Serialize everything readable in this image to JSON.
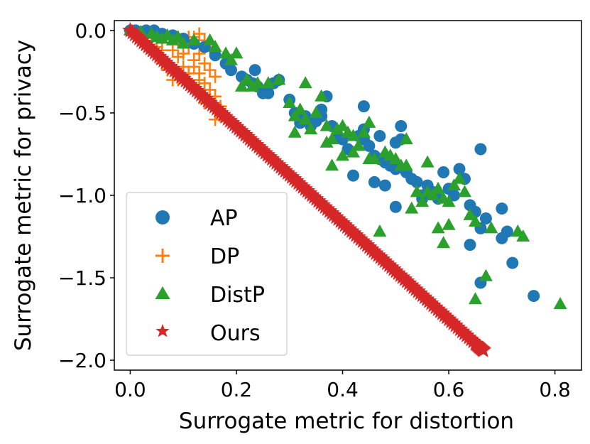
{
  "chart_data": {
    "type": "scatter",
    "title": "",
    "xlabel": "Surrogate metric for distortion",
    "ylabel": "Surrogate metric for privacy",
    "xlim": [
      -0.03,
      0.85
    ],
    "ylim": [
      -2.06,
      0.06
    ],
    "xticks": [
      0.0,
      0.2,
      0.4,
      0.6,
      0.8
    ],
    "xtick_labels": [
      "0.0",
      "0.2",
      "0.4",
      "0.6",
      "0.8"
    ],
    "yticks": [
      0.0,
      -0.5,
      -1.0,
      -1.5,
      -2.0
    ],
    "ytick_labels": [
      "0.0",
      "−0.5",
      "−1.0",
      "−1.5",
      "−2.0"
    ],
    "grid": false,
    "legend_position": "lower-left",
    "series": [
      {
        "name": "AP",
        "marker": "circle",
        "color": "#1f77b4",
        "points": [
          [
            0.0,
            0.0
          ],
          [
            0.01,
            0.0
          ],
          [
            0.02,
            -0.01
          ],
          [
            0.03,
            0.0
          ],
          [
            0.045,
            0.0
          ],
          [
            0.06,
            -0.02
          ],
          [
            0.08,
            -0.03
          ],
          [
            0.1,
            -0.05
          ],
          [
            0.12,
            -0.08
          ],
          [
            0.14,
            -0.1
          ],
          [
            0.16,
            -0.15
          ],
          [
            0.18,
            -0.2
          ],
          [
            0.19,
            -0.24
          ],
          [
            0.21,
            -0.28
          ],
          [
            0.22,
            -0.3
          ],
          [
            0.23,
            -0.32
          ],
          [
            0.235,
            -0.24
          ],
          [
            0.24,
            -0.34
          ],
          [
            0.25,
            -0.38
          ],
          [
            0.26,
            -0.38
          ],
          [
            0.27,
            -0.32
          ],
          [
            0.28,
            -0.3
          ],
          [
            0.3,
            -0.42
          ],
          [
            0.31,
            -0.5
          ],
          [
            0.32,
            -0.56
          ],
          [
            0.33,
            -0.52
          ],
          [
            0.34,
            -0.58
          ],
          [
            0.35,
            -0.55
          ],
          [
            0.36,
            -0.48
          ],
          [
            0.37,
            -0.4
          ],
          [
            0.38,
            -0.58
          ],
          [
            0.39,
            -0.64
          ],
          [
            0.4,
            -0.66
          ],
          [
            0.41,
            -0.72
          ],
          [
            0.42,
            -0.88
          ],
          [
            0.43,
            -0.64
          ],
          [
            0.44,
            -0.6
          ],
          [
            0.44,
            -0.46
          ],
          [
            0.45,
            -0.7
          ],
          [
            0.46,
            -0.76
          ],
          [
            0.47,
            -0.64
          ],
          [
            0.47,
            -0.78
          ],
          [
            0.48,
            -0.8
          ],
          [
            0.49,
            -0.82
          ],
          [
            0.5,
            -0.68
          ],
          [
            0.5,
            -0.84
          ],
          [
            0.51,
            -0.66
          ],
          [
            0.51,
            -0.58
          ],
          [
            0.52,
            -0.86
          ],
          [
            0.53,
            -0.9
          ],
          [
            0.54,
            -0.92
          ],
          [
            0.55,
            -1.0
          ],
          [
            0.56,
            -0.94
          ],
          [
            0.57,
            -0.98
          ],
          [
            0.58,
            -1.02
          ],
          [
            0.59,
            -0.86
          ],
          [
            0.6,
            -0.96
          ],
          [
            0.61,
            -1.0
          ],
          [
            0.62,
            -0.84
          ],
          [
            0.63,
            -0.9
          ],
          [
            0.64,
            -1.06
          ],
          [
            0.65,
            -1.1
          ],
          [
            0.66,
            -1.2
          ],
          [
            0.66,
            -0.72
          ],
          [
            0.67,
            -1.14
          ],
          [
            0.64,
            -1.3
          ],
          [
            0.66,
            -1.53
          ],
          [
            0.7,
            -1.08
          ],
          [
            0.7,
            -1.26
          ],
          [
            0.71,
            -1.22
          ],
          [
            0.72,
            -1.41
          ],
          [
            0.76,
            -1.61
          ],
          [
            0.5,
            -1.07
          ],
          [
            0.55,
            -1.02
          ],
          [
            0.46,
            -0.92
          ],
          [
            0.48,
            -0.94
          ],
          [
            0.44,
            -0.66
          ],
          [
            0.36,
            -0.52
          ]
        ]
      },
      {
        "name": "DP",
        "marker": "plus",
        "color": "#ff7f0e",
        "points": [
          [
            0.0,
            0.0
          ],
          [
            0.02,
            -0.01
          ],
          [
            0.04,
            -0.02
          ],
          [
            0.05,
            -0.1
          ],
          [
            0.06,
            -0.2
          ],
          [
            0.06,
            -0.05
          ],
          [
            0.07,
            -0.24
          ],
          [
            0.08,
            -0.3
          ],
          [
            0.08,
            -0.12
          ],
          [
            0.09,
            -0.16
          ],
          [
            0.09,
            -0.3
          ],
          [
            0.1,
            -0.08
          ],
          [
            0.1,
            -0.22
          ],
          [
            0.11,
            -0.1
          ],
          [
            0.11,
            -0.26
          ],
          [
            0.12,
            -0.04
          ],
          [
            0.12,
            -0.18
          ],
          [
            0.12,
            -0.34
          ],
          [
            0.13,
            -0.14
          ],
          [
            0.13,
            -0.02
          ],
          [
            0.13,
            -0.26
          ],
          [
            0.14,
            -0.06
          ],
          [
            0.14,
            -0.2
          ],
          [
            0.14,
            -0.32
          ],
          [
            0.15,
            -0.1
          ],
          [
            0.15,
            -0.24
          ],
          [
            0.15,
            -0.36
          ],
          [
            0.16,
            -0.28
          ],
          [
            0.16,
            -0.4
          ],
          [
            0.16,
            -0.54
          ],
          [
            0.17,
            -0.46
          ],
          [
            0.17,
            -0.52
          ],
          [
            0.15,
            -0.42
          ],
          [
            0.1,
            -0.14
          ],
          [
            0.09,
            -0.06
          ],
          [
            0.11,
            -0.04
          ],
          [
            0.13,
            -0.3
          ],
          [
            0.14,
            -0.44
          ],
          [
            0.12,
            -0.22
          ],
          [
            0.06,
            -0.12
          ]
        ]
      },
      {
        "name": "DistP",
        "marker": "triangle",
        "color": "#2ca02c",
        "points": [
          [
            0.0,
            0.0
          ],
          [
            0.02,
            -0.01
          ],
          [
            0.04,
            -0.02
          ],
          [
            0.05,
            -0.04
          ],
          [
            0.06,
            -0.05
          ],
          [
            0.07,
            -0.03
          ],
          [
            0.08,
            -0.06
          ],
          [
            0.09,
            -0.04
          ],
          [
            0.1,
            -0.08
          ],
          [
            0.12,
            -0.06
          ],
          [
            0.15,
            -0.06
          ],
          [
            0.16,
            -0.1
          ],
          [
            0.18,
            -0.14
          ],
          [
            0.19,
            -0.18
          ],
          [
            0.2,
            -0.14
          ],
          [
            0.21,
            -0.34
          ],
          [
            0.22,
            -0.3
          ],
          [
            0.23,
            -0.34
          ],
          [
            0.24,
            -0.32
          ],
          [
            0.26,
            -0.32
          ],
          [
            0.28,
            -0.3
          ],
          [
            0.3,
            -0.44
          ],
          [
            0.31,
            -0.52
          ],
          [
            0.31,
            -0.62
          ],
          [
            0.32,
            -0.48
          ],
          [
            0.33,
            -0.54
          ],
          [
            0.33,
            -0.32
          ],
          [
            0.34,
            -0.6
          ],
          [
            0.35,
            -0.5
          ],
          [
            0.36,
            -0.4
          ],
          [
            0.37,
            -0.58
          ],
          [
            0.37,
            -0.68
          ],
          [
            0.38,
            -0.66
          ],
          [
            0.38,
            -0.82
          ],
          [
            0.39,
            -0.6
          ],
          [
            0.4,
            -0.58
          ],
          [
            0.4,
            -0.76
          ],
          [
            0.41,
            -0.62
          ],
          [
            0.42,
            -0.64
          ],
          [
            0.43,
            -0.7
          ],
          [
            0.44,
            -0.62
          ],
          [
            0.45,
            -0.56
          ],
          [
            0.45,
            -0.78
          ],
          [
            0.46,
            -0.78
          ],
          [
            0.47,
            -1.22
          ],
          [
            0.48,
            -0.74
          ],
          [
            0.49,
            -0.76
          ],
          [
            0.5,
            -0.78
          ],
          [
            0.51,
            -0.82
          ],
          [
            0.52,
            -0.66
          ],
          [
            0.53,
            -1.08
          ],
          [
            0.54,
            -0.98
          ],
          [
            0.55,
            -1.04
          ],
          [
            0.56,
            -0.8
          ],
          [
            0.57,
            -1.0
          ],
          [
            0.58,
            -1.2
          ],
          [
            0.58,
            -0.96
          ],
          [
            0.59,
            -1.29
          ],
          [
            0.6,
            -1.18
          ],
          [
            0.6,
            -1.04
          ],
          [
            0.61,
            -0.94
          ],
          [
            0.62,
            -0.9
          ],
          [
            0.63,
            -0.98
          ],
          [
            0.64,
            -1.12
          ],
          [
            0.65,
            -1.16
          ],
          [
            0.65,
            -1.63
          ],
          [
            0.67,
            -1.49
          ],
          [
            0.68,
            -1.2
          ],
          [
            0.73,
            -1.22
          ],
          [
            0.74,
            -1.25
          ],
          [
            0.81,
            -1.66
          ],
          [
            0.59,
            -1.02
          ],
          [
            0.56,
            -0.98
          ],
          [
            0.52,
            -0.82
          ],
          [
            0.42,
            -0.74
          ]
        ]
      },
      {
        "name": "Ours",
        "marker": "star",
        "color": "#d62728",
        "points": [
          [
            0.0,
            0.0
          ],
          [
            0.05,
            -0.146
          ],
          [
            0.1,
            -0.292
          ],
          [
            0.15,
            -0.438
          ],
          [
            0.2,
            -0.584
          ],
          [
            0.25,
            -0.73
          ],
          [
            0.3,
            -0.876
          ],
          [
            0.35,
            -1.022
          ],
          [
            0.4,
            -1.168
          ],
          [
            0.45,
            -1.314
          ],
          [
            0.5,
            -1.46
          ],
          [
            0.55,
            -1.606
          ],
          [
            0.6,
            -1.752
          ],
          [
            0.65,
            -1.898
          ],
          [
            0.665,
            -1.94
          ]
        ]
      }
    ]
  },
  "legend": {
    "items": [
      {
        "label": "AP"
      },
      {
        "label": "DP"
      },
      {
        "label": "DistP"
      },
      {
        "label": "Ours"
      }
    ]
  }
}
